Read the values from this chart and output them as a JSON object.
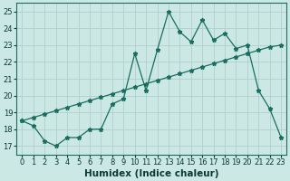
{
  "xlabel": "Humidex (Indice chaleur)",
  "background_color": "#cce8e4",
  "line_color": "#1a6e60",
  "grid_color": "#b0d0cc",
  "xlim": [
    -0.5,
    23.5
  ],
  "ylim": [
    16.5,
    25.5
  ],
  "xticks": [
    0,
    1,
    2,
    3,
    4,
    5,
    6,
    7,
    8,
    9,
    10,
    11,
    12,
    13,
    14,
    15,
    16,
    17,
    18,
    19,
    20,
    21,
    22,
    23
  ],
  "yticks": [
    17,
    18,
    19,
    20,
    21,
    22,
    23,
    24,
    25
  ],
  "series1_x": [
    0,
    1,
    2,
    3,
    4,
    5,
    6,
    7,
    8,
    9,
    10,
    11,
    12,
    13,
    14,
    15,
    16,
    17,
    18,
    19,
    20,
    21,
    22,
    23
  ],
  "series1_y": [
    18.5,
    18.2,
    17.3,
    17.0,
    17.5,
    17.5,
    18.0,
    18.0,
    19.5,
    19.8,
    22.5,
    20.3,
    22.7,
    25.0,
    23.8,
    23.2,
    24.5,
    23.3,
    23.7,
    22.8,
    23.0,
    20.3,
    19.2,
    17.5
  ],
  "series2_x": [
    0,
    1,
    2,
    3,
    4,
    5,
    6,
    7,
    8,
    9,
    10,
    11,
    12,
    13,
    14,
    15,
    16,
    17,
    18,
    19,
    20,
    21,
    22,
    23
  ],
  "series2_y": [
    18.5,
    18.7,
    18.9,
    19.1,
    19.3,
    19.5,
    19.7,
    19.9,
    20.1,
    20.3,
    20.5,
    20.7,
    20.9,
    21.1,
    21.3,
    21.5,
    21.7,
    21.9,
    22.1,
    22.3,
    22.5,
    22.7,
    22.9,
    23.0
  ],
  "marker": "*",
  "markersize": 3.5,
  "linewidth": 0.9,
  "tick_fontsize": 6.0,
  "xlabel_fontsize": 7.5
}
